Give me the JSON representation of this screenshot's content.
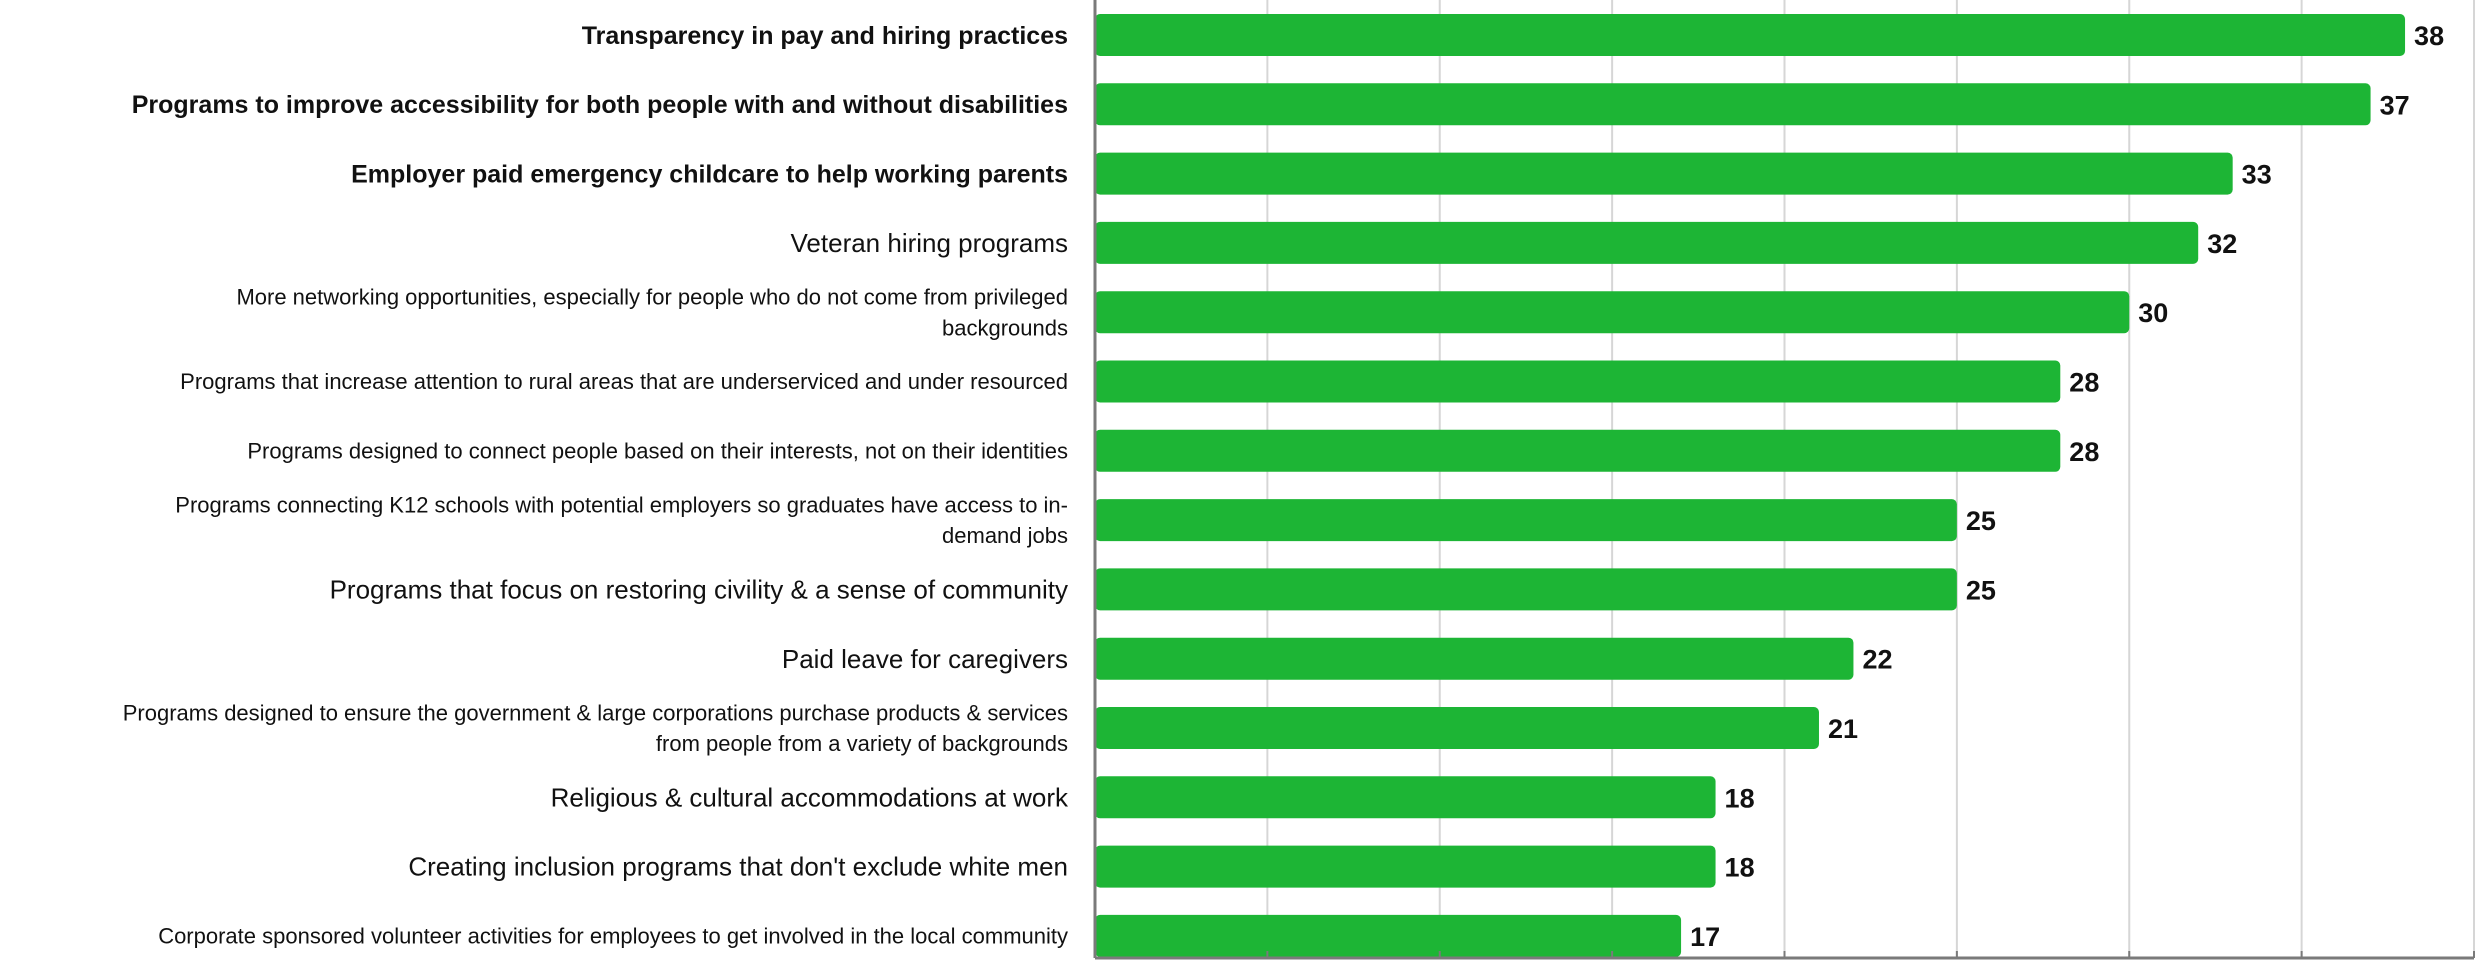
{
  "chart_data": {
    "type": "bar",
    "orientation": "horizontal",
    "categories": [
      "Transparency in pay and hiring practices",
      "Programs to improve accessibility for both people with and without disabilities",
      "Employer paid emergency childcare to help working parents",
      "Veteran hiring programs",
      "More networking opportunities, especially for people who do not come from privileged backgrounds",
      "Programs that increase attention to rural areas that are underserviced and under resourced",
      "Programs designed to connect people based on their interests, not on their identities",
      "Programs connecting K12 schools with potential employers so graduates have access to in-demand jobs",
      "Programs that focus on restoring civility & a sense of community",
      "Paid leave for caregivers",
      "Programs designed to ensure the government & large corporations purchase products & services from people from a variety of backgrounds",
      "Religious & cultural accommodations at work",
      "Creating inclusion programs that don't exclude white men",
      "Corporate sponsored volunteer activities for employees to get involved in the local community"
    ],
    "category_lines": [
      [
        "Transparency in pay and hiring practices"
      ],
      [
        "Programs to improve accessibility for both people with and without disabilities"
      ],
      [
        "Employer paid emergency childcare to help working parents"
      ],
      [
        "Veteran hiring programs"
      ],
      [
        "More networking opportunities, especially for people who do not come from privileged",
        "backgrounds"
      ],
      [
        "Programs that increase attention to rural areas that are underserviced and under resourced"
      ],
      [
        "Programs designed to connect people based on their interests, not on their identities"
      ],
      [
        "Programs connecting K12 schools with potential employers so graduates have access to in-",
        "demand jobs"
      ],
      [
        "Programs that focus on restoring civility & a sense of community"
      ],
      [
        "Paid leave for caregivers"
      ],
      [
        "Programs designed to ensure the government & large corporations purchase products & services",
        "from people from a variety of backgrounds"
      ],
      [
        "Religious & cultural accommodations at work"
      ],
      [
        "Creating inclusion programs that don't exclude white men"
      ],
      [
        "Corporate sponsored volunteer activities for employees to get involved in the local community"
      ]
    ],
    "bold_categories": [
      0,
      1,
      2
    ],
    "values": [
      38,
      37,
      33,
      32,
      30,
      28,
      28,
      25,
      25,
      22,
      21,
      18,
      18,
      17
    ],
    "xlim": [
      0,
      40
    ],
    "grid_step": 5,
    "grid": true,
    "legend": "none",
    "title": "",
    "xlabel": "",
    "ylabel": "",
    "colors": {
      "bar": "#1db535",
      "grid": "#d6d6d6",
      "axis": "#7a7a7a",
      "text": "#111111"
    }
  }
}
